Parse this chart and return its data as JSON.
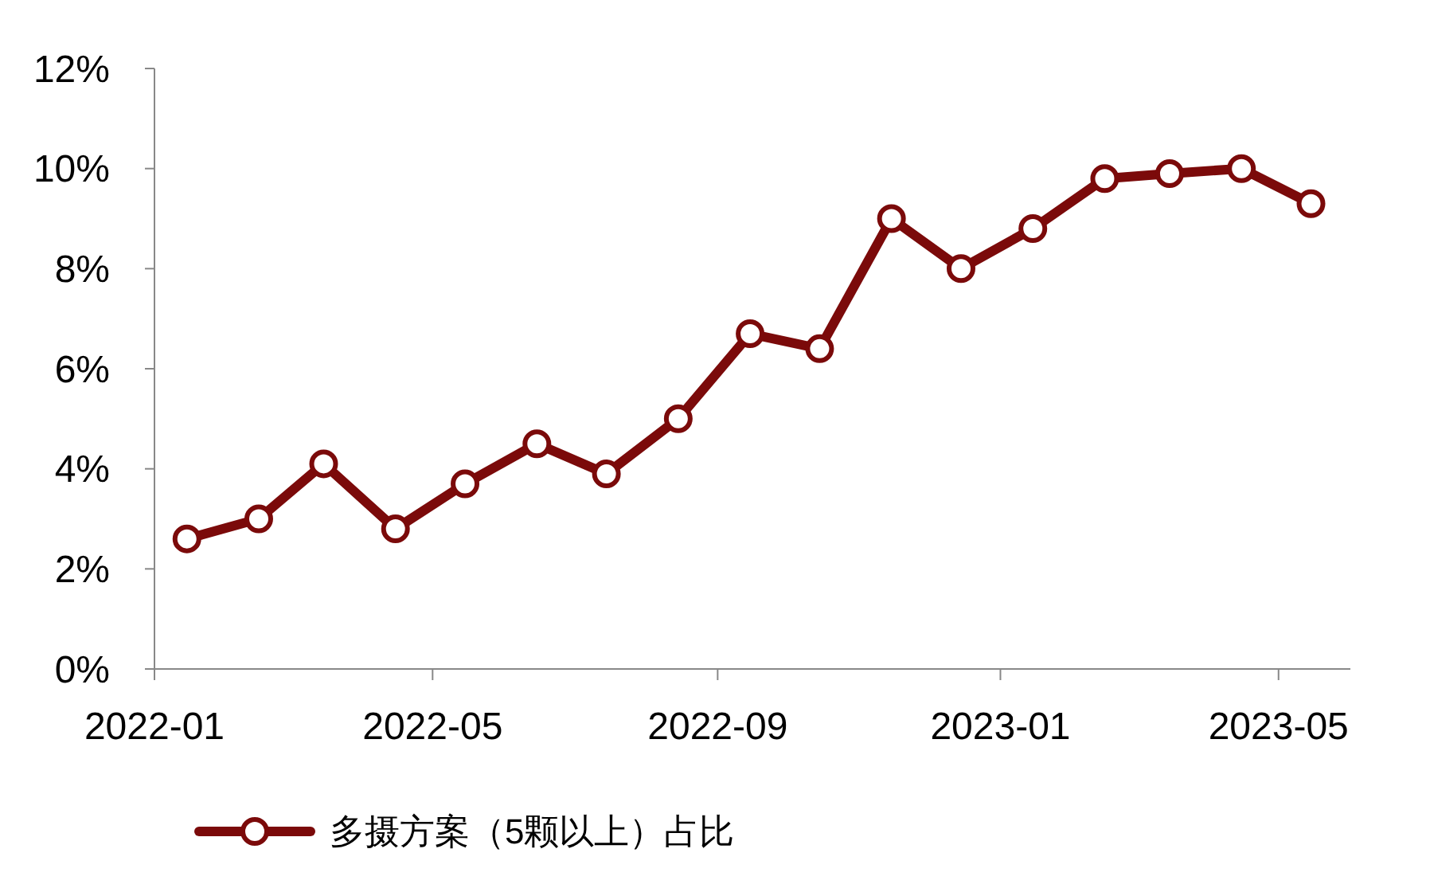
{
  "chart_data": {
    "type": "line",
    "x": [
      "2022-01-15",
      "2022-02-15",
      "2022-03-15",
      "2022-04-15",
      "2022-05-15",
      "2022-06-15",
      "2022-07-15",
      "2022-08-15",
      "2022-09-15",
      "2022-10-15",
      "2022-11-15",
      "2022-12-15",
      "2023-01-15",
      "2023-02-15",
      "2023-03-15",
      "2023-04-15",
      "2023-05-15"
    ],
    "series": [
      {
        "name": "多摄方案（5颗以上）占比",
        "color": "#7b0a0a",
        "values": [
          2.6,
          3.0,
          4.1,
          2.8,
          3.7,
          4.5,
          3.9,
          5.0,
          6.7,
          6.4,
          9.0,
          8.0,
          8.8,
          9.8,
          9.9,
          10.0,
          9.3
        ]
      }
    ],
    "xlim": [
      "2022-01",
      "2023-06"
    ],
    "xticks": [
      {
        "value": "2022-01",
        "label": "2022-01"
      },
      {
        "value": "2022-05",
        "label": "2022-05"
      },
      {
        "value": "2022-09",
        "label": "2022-09"
      },
      {
        "value": "2023-01",
        "label": "2023-01"
      },
      {
        "value": "2023-05",
        "label": "2023-05"
      }
    ],
    "ylim": [
      0,
      12
    ],
    "yticks": [
      {
        "value": 0,
        "label": "0%"
      },
      {
        "value": 2,
        "label": "2%"
      },
      {
        "value": 4,
        "label": "4%"
      },
      {
        "value": 6,
        "label": "6%"
      },
      {
        "value": 8,
        "label": "8%"
      },
      {
        "value": 10,
        "label": "10%"
      },
      {
        "value": 12,
        "label": "12%"
      }
    ],
    "grid": false,
    "legend": "bottom",
    "marker": "circle",
    "line_style": "solid"
  }
}
